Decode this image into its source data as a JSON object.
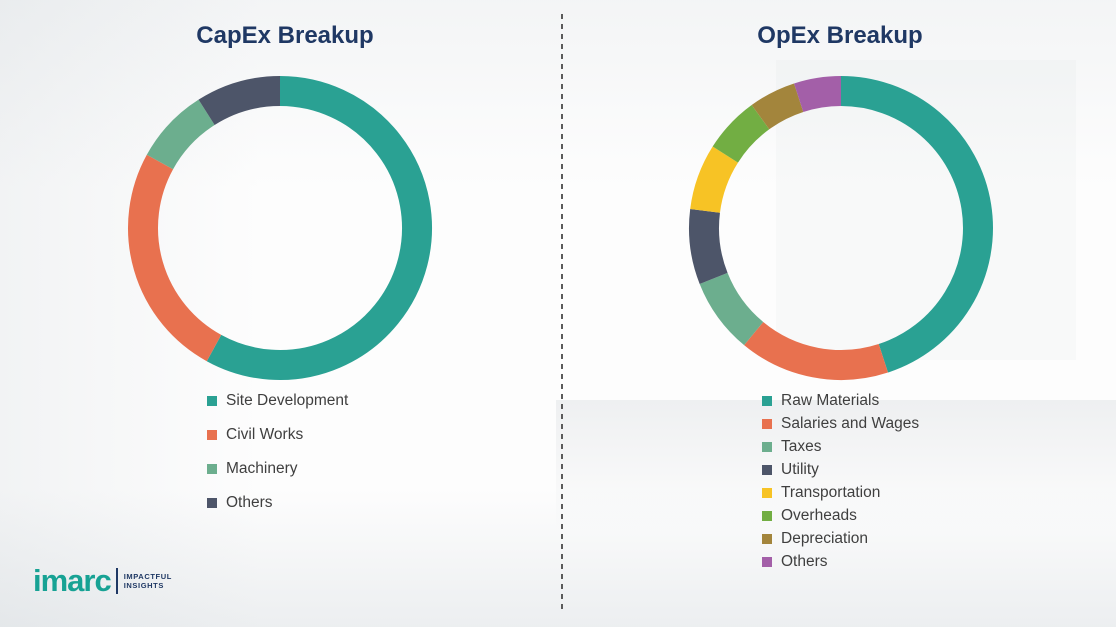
{
  "chart_data": [
    {
      "type": "pie",
      "donut": true,
      "title": "CapEx Breakup",
      "labels": [
        "Site Development",
        "Civil Works",
        "Machinery",
        "Others"
      ],
      "values": [
        58,
        25,
        8,
        9
      ],
      "colors": [
        "#2AA193",
        "#E8714F",
        "#6CAE8E",
        "#4D5569"
      ],
      "legend_position": "bottom"
    },
    {
      "type": "pie",
      "donut": true,
      "title": "OpEx Breakup",
      "labels": [
        "Raw Materials",
        "Salaries and Wages",
        "Taxes",
        "Utility",
        "Transportation",
        "Overheads",
        "Depreciation",
        "Others"
      ],
      "values": [
        45,
        16,
        8,
        8,
        7,
        6,
        5,
        5
      ],
      "colors": [
        "#2AA193",
        "#E8714F",
        "#6CAE8E",
        "#4D5569",
        "#F7C325",
        "#72AE43",
        "#A3853C",
        "#A35FA8"
      ],
      "legend_position": "bottom"
    }
  ],
  "logo": {
    "brand": "imarc",
    "tagline_line1": "IMPACTFUL",
    "tagline_line2": "INSIGHTS"
  }
}
